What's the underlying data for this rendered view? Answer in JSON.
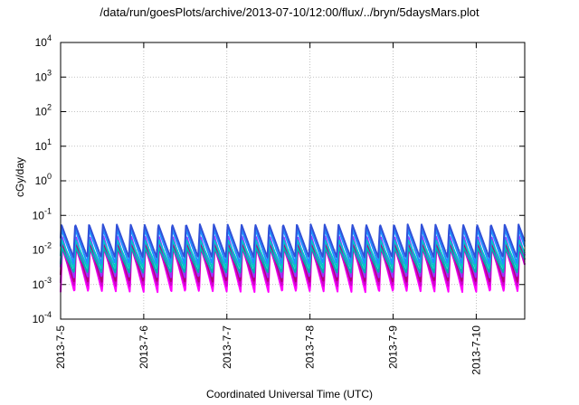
{
  "chart_data": {
    "type": "line",
    "title": "/data/run/goesPlots/archive/2013-07-10/12:00/flux/../bryn/5daysMars.plot",
    "xlabel": "Coordinated Universal Time (UTC)",
    "ylabel": "cGy/day",
    "yscale": "log",
    "ylim": [
      0.0001,
      10000
    ],
    "y_ticks": [
      {
        "value": 0.0001,
        "exp": "-4"
      },
      {
        "value": 0.001,
        "exp": "-3"
      },
      {
        "value": 0.01,
        "exp": "-2"
      },
      {
        "value": 0.1,
        "exp": "-1"
      },
      {
        "value": 1,
        "exp": "0"
      },
      {
        "value": 10,
        "exp": "1"
      },
      {
        "value": 100,
        "exp": "2"
      },
      {
        "value": 1000,
        "exp": "3"
      },
      {
        "value": 10000,
        "exp": "4"
      }
    ],
    "y_tick_base": "10",
    "xlim": [
      "2013-07-05T00:00",
      "2013-07-10T14:00"
    ],
    "x_ticks": [
      "2013-7-5",
      "2013-7-6",
      "2013-7-7",
      "2013-7-8",
      "2013-7-9",
      "2013-7-10"
    ],
    "grid": true,
    "legend": "none",
    "period_hours": 4,
    "series": [
      {
        "color": "#ff00ff",
        "peak": 0.015,
        "trough": 0.0006
      },
      {
        "color": "#d000d0",
        "peak": 0.012,
        "trough": 0.0009
      },
      {
        "color": "#b3007a",
        "peak": 0.018,
        "trough": 0.0012
      },
      {
        "color": "#9b30ff",
        "peak": 0.025,
        "trough": 0.0016
      },
      {
        "color": "#00b0b0",
        "peak": 0.012,
        "trough": 0.0022
      },
      {
        "color": "#00c8c8",
        "peak": 0.02,
        "trough": 0.003
      },
      {
        "color": "#1e90ff",
        "peak": 0.04,
        "trough": 0.004
      },
      {
        "color": "#3050d8",
        "peak": 0.055,
        "trough": 0.006
      }
    ]
  }
}
